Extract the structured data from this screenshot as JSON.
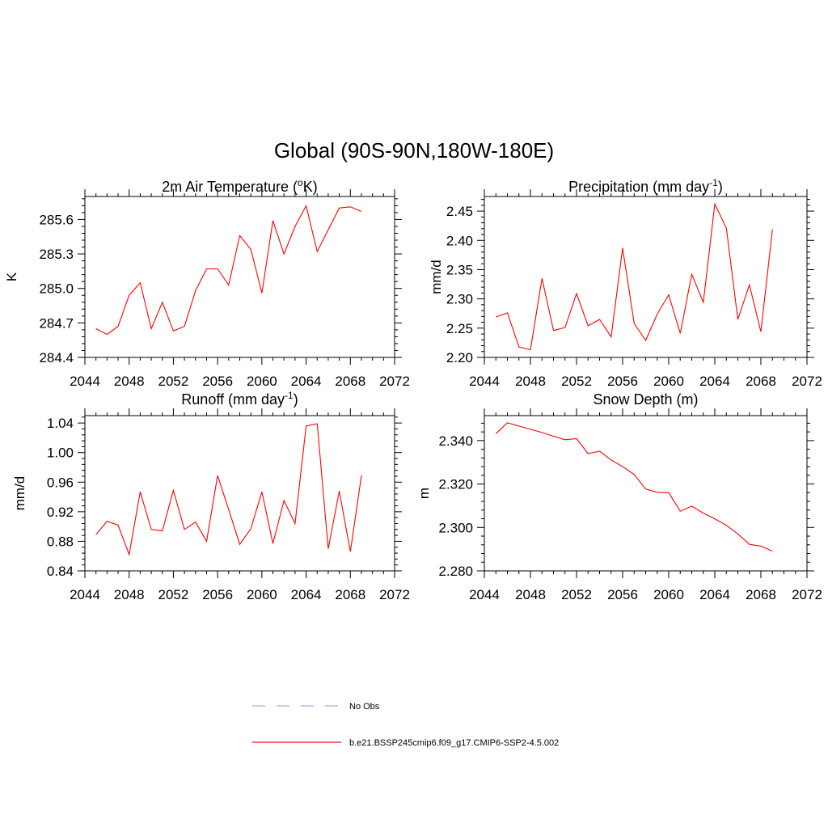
{
  "figure": {
    "title": "Global (90S-90N,180W-180E)"
  },
  "legend": {
    "items": [
      {
        "label": "No Obs",
        "color": "#aaaaee",
        "style": "dashed"
      },
      {
        "label": "b.e21.BSSP245cmip6.f09_g17.CMIP6-SSP2-4.5.002",
        "color": "#ff0000",
        "style": "solid"
      }
    ]
  },
  "chart_data": [
    {
      "type": "line",
      "title": "2m Air Temperature (",
      "title_sup": "o",
      "title_after": "K)",
      "ylabel": "K",
      "xlim": [
        2044,
        2072
      ],
      "ylim": [
        284.4,
        285.8
      ],
      "xticks": [
        2044,
        2048,
        2052,
        2056,
        2060,
        2064,
        2068,
        2072
      ],
      "yticks": [
        284.4,
        284.7,
        285.0,
        285.3,
        285.6
      ],
      "ytick_labels": [
        "284.4",
        "284.7",
        "285.0",
        "285.3",
        "285.6"
      ],
      "series": [
        {
          "name": "b.e21.BSSP245cmip6.f09_g17.CMIP6-SSP2-4.5.002",
          "color": "#ff0000",
          "x": [
            2045,
            2046,
            2047,
            2048,
            2049,
            2050,
            2051,
            2052,
            2053,
            2054,
            2055,
            2056,
            2057,
            2058,
            2059,
            2060,
            2061,
            2062,
            2063,
            2064,
            2065,
            2066,
            2067,
            2068,
            2069
          ],
          "values": [
            284.65,
            284.6,
            284.67,
            284.94,
            285.05,
            284.65,
            284.88,
            284.63,
            284.67,
            284.98,
            285.17,
            285.17,
            285.03,
            285.46,
            285.34,
            284.96,
            285.59,
            285.3,
            285.54,
            285.72,
            285.32,
            285.51,
            285.7,
            285.71,
            285.67
          ]
        }
      ]
    },
    {
      "type": "line",
      "title": "Precipitation (mm day",
      "title_sup": "-1",
      "title_after": ")",
      "ylabel": "mm/d",
      "xlim": [
        2044,
        2072
      ],
      "ylim": [
        2.2,
        2.475
      ],
      "xticks": [
        2044,
        2048,
        2052,
        2056,
        2060,
        2064,
        2068,
        2072
      ],
      "yticks": [
        2.2,
        2.25,
        2.3,
        2.35,
        2.4,
        2.45
      ],
      "ytick_labels": [
        "2.20",
        "2.25",
        "2.30",
        "2.35",
        "2.40",
        "2.45"
      ],
      "series": [
        {
          "name": "b.e21.BSSP245cmip6.f09_g17.CMIP6-SSP2-4.5.002",
          "color": "#ff0000",
          "x": [
            2045,
            2046,
            2047,
            2048,
            2049,
            2050,
            2051,
            2052,
            2053,
            2054,
            2055,
            2056,
            2057,
            2058,
            2059,
            2060,
            2061,
            2062,
            2063,
            2064,
            2065,
            2066,
            2067,
            2068,
            2069
          ],
          "values": [
            2.269,
            2.276,
            2.218,
            2.213,
            2.335,
            2.246,
            2.251,
            2.309,
            2.254,
            2.265,
            2.235,
            2.387,
            2.258,
            2.229,
            2.274,
            2.307,
            2.241,
            2.342,
            2.294,
            2.462,
            2.421,
            2.265,
            2.324,
            2.244,
            2.419
          ]
        }
      ]
    },
    {
      "type": "line",
      "title": "Runoff (mm day",
      "title_sup": "-1",
      "title_after": ")",
      "ylabel": "mm/d",
      "xlim": [
        2044,
        2072
      ],
      "ylim": [
        0.84,
        1.05
      ],
      "xticks": [
        2044,
        2048,
        2052,
        2056,
        2060,
        2064,
        2068,
        2072
      ],
      "yticks": [
        0.84,
        0.88,
        0.92,
        0.96,
        1.0,
        1.04
      ],
      "ytick_labels": [
        "0.84",
        "0.88",
        "0.92",
        "0.96",
        "1.00",
        "1.04"
      ],
      "series": [
        {
          "name": "b.e21.BSSP245cmip6.f09_g17.CMIP6-SSP2-4.5.002",
          "color": "#ff0000",
          "x": [
            2045,
            2046,
            2047,
            2048,
            2049,
            2050,
            2051,
            2052,
            2053,
            2054,
            2055,
            2056,
            2057,
            2058,
            2059,
            2060,
            2061,
            2062,
            2063,
            2064,
            2065,
            2066,
            2067,
            2068,
            2069
          ],
          "values": [
            0.889,
            0.907,
            0.902,
            0.862,
            0.947,
            0.896,
            0.894,
            0.949,
            0.896,
            0.906,
            0.88,
            0.969,
            0.923,
            0.876,
            0.897,
            0.947,
            0.877,
            0.935,
            0.904,
            1.036,
            1.039,
            0.87,
            0.948,
            0.866,
            0.969
          ]
        }
      ]
    },
    {
      "type": "line",
      "title": "Snow Depth (m)",
      "title_sup": "",
      "title_after": "",
      "ylabel": "m",
      "xlim": [
        2044,
        2072
      ],
      "ylim": [
        2.28,
        2.3515
      ],
      "xticks": [
        2044,
        2048,
        2052,
        2056,
        2060,
        2064,
        2068,
        2072
      ],
      "yticks": [
        2.28,
        2.3,
        2.32,
        2.34
      ],
      "ytick_labels": [
        "2.280",
        "2.300",
        "2.320",
        "2.340"
      ],
      "series": [
        {
          "name": "b.e21.BSSP245cmip6.f09_g17.CMIP6-SSP2-4.5.002",
          "color": "#ff0000",
          "x": [
            2045,
            2046,
            2047,
            2048,
            2049,
            2050,
            2051,
            2052,
            2053,
            2054,
            2055,
            2056,
            2057,
            2058,
            2059,
            2060,
            2061,
            2062,
            2063,
            2064,
            2065,
            2066,
            2067,
            2068,
            2069
          ],
          "values": [
            2.3432,
            2.3482,
            2.3467,
            2.3452,
            2.3437,
            2.342,
            2.3404,
            2.3409,
            2.334,
            2.3351,
            2.3311,
            2.328,
            2.3244,
            2.3177,
            2.3162,
            2.316,
            2.3075,
            2.3098,
            2.3066,
            2.304,
            2.301,
            2.297,
            2.2922,
            2.2914,
            2.2891
          ]
        }
      ]
    }
  ]
}
